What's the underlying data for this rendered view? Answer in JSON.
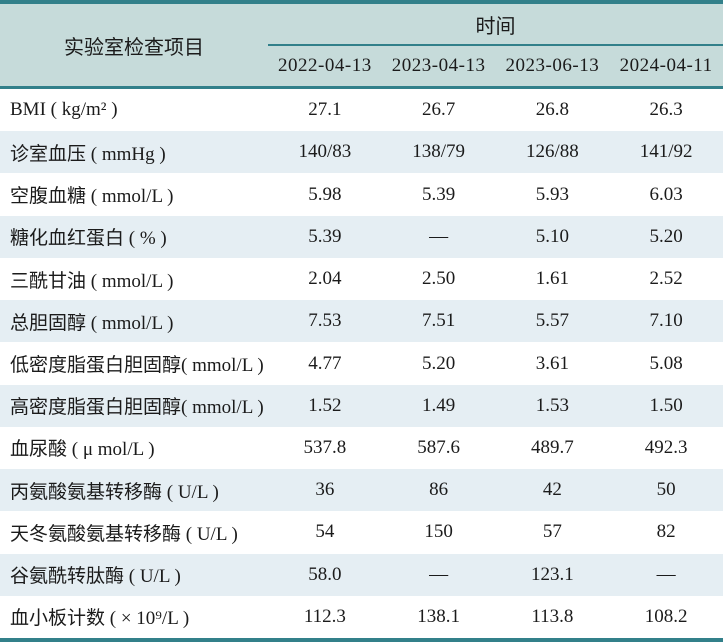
{
  "table": {
    "corner_header": "实验室检查项目",
    "time_header": "时间",
    "dates": [
      "2022-04-13",
      "2023-04-13",
      "2023-06-13",
      "2024-04-11"
    ],
    "rows": [
      {
        "label": "BMI ( kg/m² )",
        "values": [
          "27.1",
          "26.7",
          "26.8",
          "26.3"
        ]
      },
      {
        "label": "诊室血压 ( mmHg )",
        "values": [
          "140/83",
          "138/79",
          "126/88",
          "141/92"
        ]
      },
      {
        "label": "空腹血糖 ( mmol/L )",
        "values": [
          "5.98",
          "5.39",
          "5.93",
          "6.03"
        ]
      },
      {
        "label": "糖化血红蛋白 ( % )",
        "values": [
          "5.39",
          "—",
          "5.10",
          "5.20"
        ]
      },
      {
        "label": "三酰甘油 ( mmol/L )",
        "values": [
          "2.04",
          "2.50",
          "1.61",
          "2.52"
        ]
      },
      {
        "label": "总胆固醇 ( mmol/L )",
        "values": [
          "7.53",
          "7.51",
          "5.57",
          "7.10"
        ]
      },
      {
        "label": "低密度脂蛋白胆固醇( mmol/L )",
        "values": [
          "4.77",
          "5.20",
          "3.61",
          "5.08"
        ]
      },
      {
        "label": "高密度脂蛋白胆固醇( mmol/L )",
        "values": [
          "1.52",
          "1.49",
          "1.53",
          "1.50"
        ]
      },
      {
        "label": "血尿酸 ( μ mol/L )",
        "values": [
          "537.8",
          "587.6",
          "489.7",
          "492.3"
        ]
      },
      {
        "label": "丙氨酸氨基转移酶 ( U/L )",
        "values": [
          "36",
          "86",
          "42",
          "50"
        ]
      },
      {
        "label": "天冬氨酸氨基转移酶 ( U/L )",
        "values": [
          "54",
          "150",
          "57",
          "82"
        ]
      },
      {
        "label": "谷氨酰转肽酶 ( U/L )",
        "values": [
          "58.0",
          "—",
          "123.1",
          "—"
        ]
      },
      {
        "label": "血小板计数 ( × 10⁹/L )",
        "values": [
          "112.3",
          "138.1",
          "113.8",
          "108.2"
        ]
      }
    ]
  },
  "colors": {
    "accent_teal_rule": "#32808a",
    "header_background": "#c6dbda",
    "striped_row_background": "#e5eef3",
    "text": "#1b1b1b"
  }
}
